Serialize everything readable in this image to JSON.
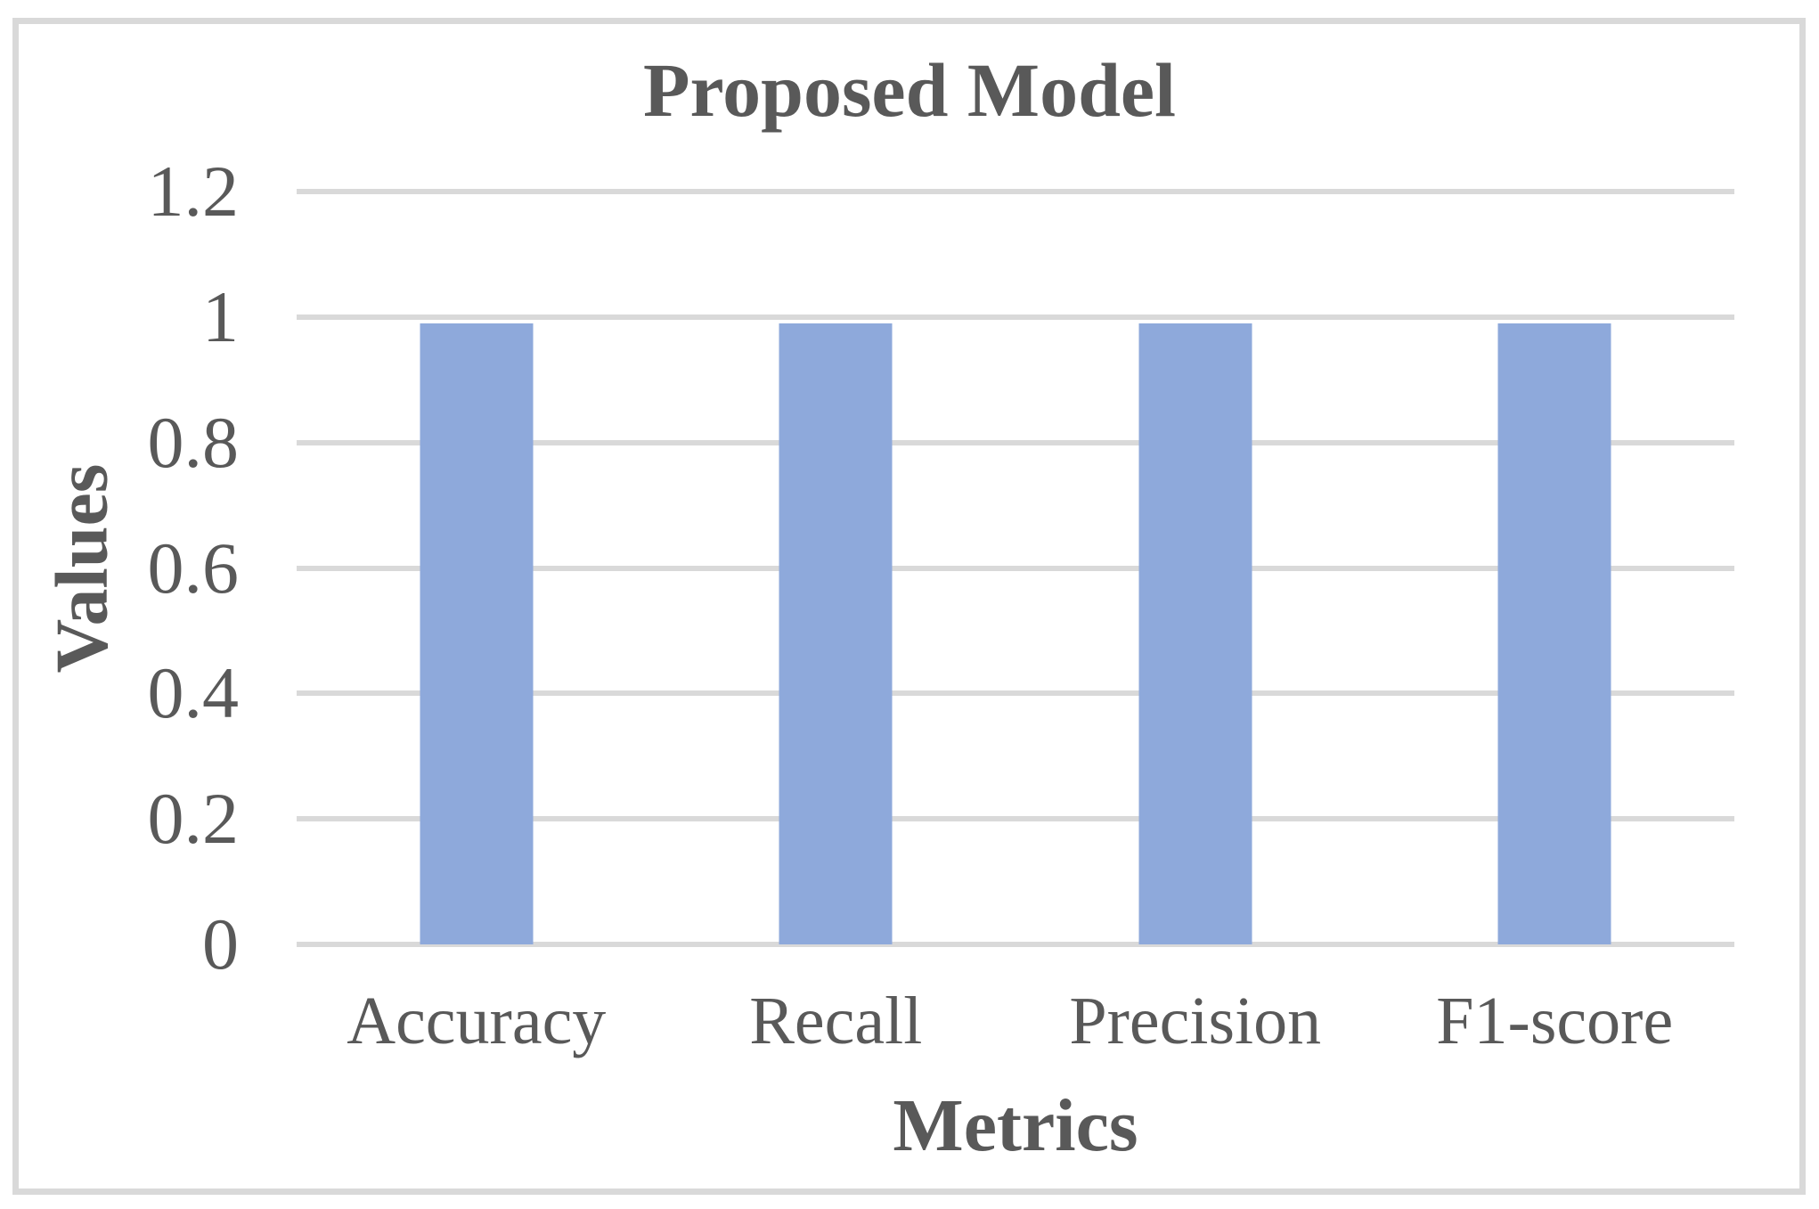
{
  "chart_data": {
    "type": "bar",
    "title": "Proposed Model",
    "xlabel": "Metrics",
    "ylabel": "Values",
    "categories": [
      "Accuracy",
      "Recall",
      "Precision",
      "F1-score"
    ],
    "values": [
      0.99,
      0.99,
      0.99,
      0.99
    ],
    "ylim": [
      0,
      1.2
    ],
    "ytick_step": 0.2,
    "ytick_labels": [
      "0",
      "0.2",
      "0.4",
      "0.6",
      "0.8",
      "1",
      "1.2"
    ],
    "grid": "horizontal",
    "legend_position": "none",
    "colors": {
      "bar": "#8EA9DB",
      "gridline": "#D9D9D9",
      "frame_border": "#D9D9D9",
      "text": "#595959",
      "background": "#FFFFFF"
    }
  }
}
